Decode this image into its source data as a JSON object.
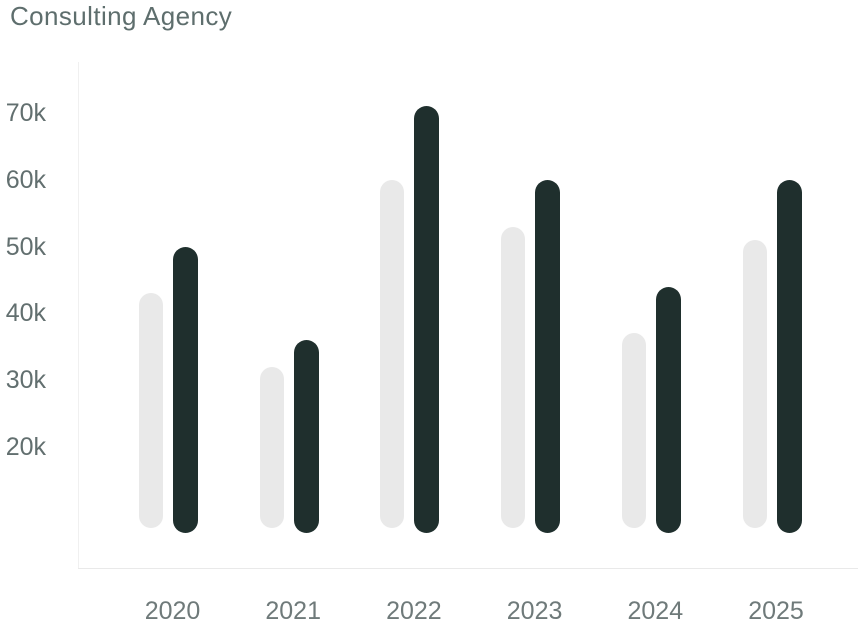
{
  "chart_data": {
    "type": "bar",
    "title": "Consulting Agency",
    "categories": [
      "2020",
      "2021",
      "2022",
      "2023",
      "2024",
      "2025"
    ],
    "series": [
      {
        "name": "light",
        "color": "#e9e9e9",
        "values_k": [
          43,
          32,
          60,
          53,
          37,
          51
        ]
      },
      {
        "name": "dark",
        "color": "#1f2f2d",
        "values_k": [
          50,
          36,
          71,
          60,
          44,
          60
        ]
      }
    ],
    "unit": "k",
    "y_tick_labels": [
      "70k",
      "60k",
      "50k",
      "40k",
      "30k",
      "20k"
    ],
    "y_tick_values_k": [
      70,
      60,
      50,
      40,
      30,
      20
    ],
    "legend": false,
    "grid": false,
    "bar_style": "rounded-pill"
  },
  "colors": {
    "title_text": "#5e6e6d",
    "tick_text": "#626f6f",
    "axis_line": "#ececec",
    "light_bar": "#e9e9e9",
    "dark_bar": "#1f2f2d"
  }
}
